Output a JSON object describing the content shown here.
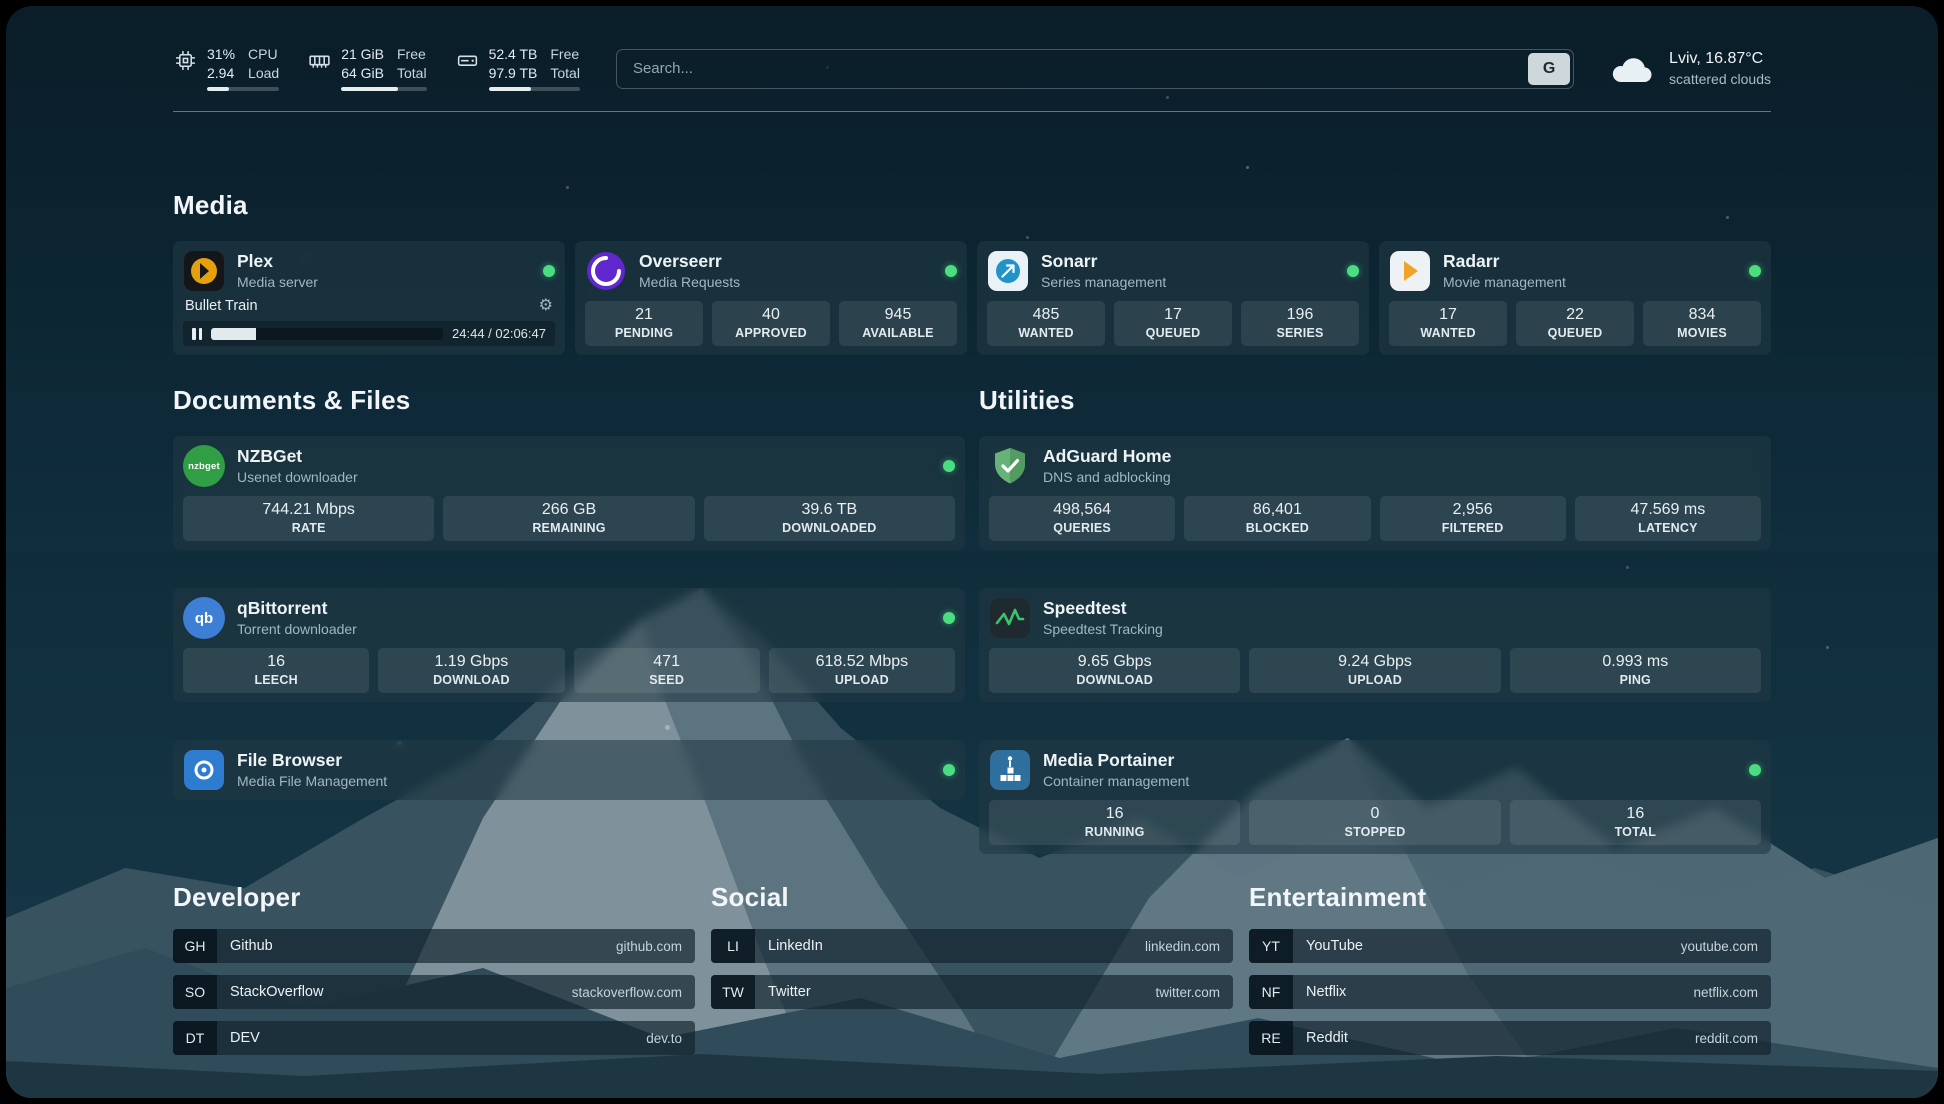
{
  "colors": {
    "status_online": "#4ade80",
    "plex_amber": "#e5a00d",
    "overseerr_purple": "#5f27cd",
    "sonarr_blue": "#2193c9",
    "radarr_amber": "#f0a32b",
    "nzbget_green": "#2f9e44",
    "qbittorrent_blue": "#3d7fd4",
    "filebrowser_blue": "#2d7cd0",
    "adguard_green": "#67b279",
    "speedtest_green": "#3ac569",
    "portainer_blue": "#2e6f9e"
  },
  "icons": {
    "cpu": "cpu-chip-icon",
    "memory": "ram-icon",
    "disk": "hard-drive-icon",
    "weather": "cloud-icon",
    "settings": "⚙"
  },
  "topbar": {
    "cpu": {
      "value": "31%",
      "load": "2.94",
      "label_top": "CPU",
      "label_bottom": "Load",
      "progress_pct": 31
    },
    "memory": {
      "free": "21 GiB",
      "total": "64 GiB",
      "label_top": "Free",
      "label_bottom": "Total",
      "progress_pct": 67
    },
    "disk": {
      "free": "52.4 TB",
      "total": "97.9 TB",
      "label_top": "Free",
      "label_bottom": "Total",
      "progress_pct": 46
    },
    "search": {
      "placeholder": "Search...",
      "provider_label": "G"
    },
    "weather": {
      "location": "Lviv, 16.87°C",
      "condition": "scattered clouds"
    }
  },
  "sections": {
    "media": "Media",
    "documents": "Documents & Files",
    "utilities": "Utilities",
    "developer": "Developer",
    "social": "Social",
    "entertainment": "Entertainment"
  },
  "services": {
    "plex": {
      "name": "Plex",
      "subtitle": "Media server",
      "status": "online",
      "now_playing": "Bullet Train",
      "time": "24:44 / 02:06:47",
      "progress_pct": 19.5
    },
    "overseerr": {
      "name": "Overseerr",
      "subtitle": "Media Requests",
      "status": "online",
      "stats": [
        {
          "value": "21",
          "label": "PENDING"
        },
        {
          "value": "40",
          "label": "APPROVED"
        },
        {
          "value": "945",
          "label": "AVAILABLE"
        }
      ]
    },
    "sonarr": {
      "name": "Sonarr",
      "subtitle": "Series management",
      "status": "online",
      "stats": [
        {
          "value": "485",
          "label": "WANTED"
        },
        {
          "value": "17",
          "label": "QUEUED"
        },
        {
          "value": "196",
          "label": "SERIES"
        }
      ]
    },
    "radarr": {
      "name": "Radarr",
      "subtitle": "Movie management",
      "status": "online",
      "stats": [
        {
          "value": "17",
          "label": "WANTED"
        },
        {
          "value": "22",
          "label": "QUEUED"
        },
        {
          "value": "834",
          "label": "MOVIES"
        }
      ]
    },
    "nzbget": {
      "name": "NZBGet",
      "subtitle": "Usenet downloader",
      "status": "online",
      "icon_text": "nzbget",
      "stats": [
        {
          "value": "744.21 Mbps",
          "label": "RATE"
        },
        {
          "value": "266 GB",
          "label": "REMAINING"
        },
        {
          "value": "39.6 TB",
          "label": "DOWNLOADED"
        }
      ]
    },
    "qbittorrent": {
      "name": "qBittorrent",
      "subtitle": "Torrent downloader",
      "status": "online",
      "icon_text": "qb",
      "stats": [
        {
          "value": "16",
          "label": "LEECH"
        },
        {
          "value": "1.19 Gbps",
          "label": "DOWNLOAD"
        },
        {
          "value": "471",
          "label": "SEED"
        },
        {
          "value": "618.52 Mbps",
          "label": "UPLOAD"
        }
      ]
    },
    "filebrowser": {
      "name": "File Browser",
      "subtitle": "Media File Management",
      "status": "online",
      "stats": []
    },
    "adguard": {
      "name": "AdGuard Home",
      "subtitle": "DNS and adblocking",
      "stats": [
        {
          "value": "498,564",
          "label": "QUERIES"
        },
        {
          "value": "86,401",
          "label": "BLOCKED"
        },
        {
          "value": "2,956",
          "label": "FILTERED"
        },
        {
          "value": "47.569 ms",
          "label": "LATENCY"
        }
      ]
    },
    "speedtest": {
      "name": "Speedtest",
      "subtitle": "Speedtest Tracking",
      "stats": [
        {
          "value": "9.65 Gbps",
          "label": "DOWNLOAD"
        },
        {
          "value": "9.24 Gbps",
          "label": "UPLOAD"
        },
        {
          "value": "0.993 ms",
          "label": "PING"
        }
      ]
    },
    "portainer": {
      "name": "Media Portainer",
      "subtitle": "Container management",
      "status": "online",
      "stats": [
        {
          "value": "16",
          "label": "RUNNING"
        },
        {
          "value": "0",
          "label": "STOPPED"
        },
        {
          "value": "16",
          "label": "TOTAL"
        }
      ]
    }
  },
  "bookmarks": {
    "developer": [
      {
        "abbr": "GH",
        "name": "Github",
        "url": "github.com"
      },
      {
        "abbr": "SO",
        "name": "StackOverflow",
        "url": "stackoverflow.com"
      },
      {
        "abbr": "DT",
        "name": "DEV",
        "url": "dev.to"
      }
    ],
    "social": [
      {
        "abbr": "LI",
        "name": "LinkedIn",
        "url": "linkedin.com"
      },
      {
        "abbr": "TW",
        "name": "Twitter",
        "url": "twitter.com"
      }
    ],
    "entertainment": [
      {
        "abbr": "YT",
        "name": "YouTube",
        "url": "youtube.com"
      },
      {
        "abbr": "NF",
        "name": "Netflix",
        "url": "netflix.com"
      },
      {
        "abbr": "RE",
        "name": "Reddit",
        "url": "reddit.com"
      }
    ]
  }
}
